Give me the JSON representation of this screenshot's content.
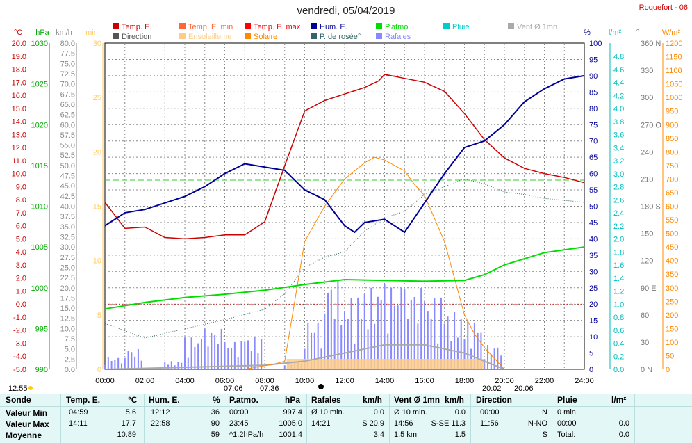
{
  "page": {
    "title": "vendredi, 05/04/2019",
    "station": "Roquefort - 06"
  },
  "legend": [
    {
      "label": "Temp. E.",
      "color": "#cc0000"
    },
    {
      "label": "Temp. E. min",
      "color": "#ff6633"
    },
    {
      "label": "Temp. E. max",
      "color": "#ff0000"
    },
    {
      "label": "Hum. E.",
      "color": "#000099"
    },
    {
      "label": "P.atmo.",
      "color": "#00dd00"
    },
    {
      "label": "Pluie",
      "color": "#00cccc"
    },
    {
      "label": "Vent Ø 1mn",
      "color": "#aaaaaa"
    },
    {
      "label": "Direction",
      "color": "#555555"
    },
    {
      "label": "Ensoleilleme",
      "color": "#ffcc88"
    },
    {
      "label": "Solaire",
      "color": "#ff8800"
    },
    {
      "label": "P. de rosée°",
      "color": "#336666"
    },
    {
      "label": "Rafales",
      "color": "#8888ff"
    }
  ],
  "axes": {
    "temp": {
      "unit": "°C",
      "color": "#cc0000",
      "ticks": [
        "20.0",
        "19.0",
        "18.0",
        "17.0",
        "16.0",
        "15.0",
        "14.0",
        "13.0",
        "12.0",
        "11.0",
        "10.0",
        "9.0",
        "8.0",
        "7.0",
        "6.0",
        "5.0",
        "4.0",
        "3.0",
        "2.0",
        "1.0",
        "0.0",
        "-1.0",
        "-2.0",
        "-3.0",
        "-4.0",
        "-5.0"
      ]
    },
    "press": {
      "unit": "hPa",
      "color": "#00aa00",
      "ticks": [
        "1030",
        "1025",
        "1020",
        "1015",
        "1010",
        "1005",
        "1000",
        "995",
        "990"
      ]
    },
    "wind": {
      "unit": "km/h",
      "color": "#888888",
      "ticks": [
        "80.0",
        "77.5",
        "75.0",
        "72.5",
        "70.0",
        "67.5",
        "65.0",
        "62.5",
        "60.0",
        "57.5",
        "55.0",
        "52.5",
        "50.0",
        "47.5",
        "45.0",
        "42.5",
        "40.0",
        "37.5",
        "35.0",
        "32.5",
        "30.0",
        "27.5",
        "25.0",
        "22.5",
        "20.0",
        "17.5",
        "15.0",
        "12.5",
        "10.0",
        "7.5",
        "5.0",
        "2.5",
        "0.0"
      ]
    },
    "minutes": {
      "unit": "min",
      "color": "#ffcc66",
      "ticks": [
        "30",
        "25",
        "20",
        "15",
        "10",
        "5",
        "0"
      ]
    },
    "hum": {
      "unit": "%",
      "color": "#000099",
      "ticks": [
        "100",
        "95",
        "90",
        "85",
        "80",
        "75",
        "70",
        "65",
        "60",
        "55",
        "50",
        "45",
        "40",
        "35",
        "30",
        "25",
        "20",
        "15",
        "10",
        "5",
        "0"
      ]
    },
    "rain": {
      "unit": "l/m²",
      "color": "#00bbbb",
      "ticks": [
        "4.8",
        "4.6",
        "4.4",
        "4.2",
        "4.0",
        "3.8",
        "3.6",
        "3.4",
        "3.2",
        "3.0",
        "2.8",
        "2.6",
        "2.4",
        "2.2",
        "2.0",
        "1.8",
        "1.6",
        "1.4",
        "1.2",
        "1.0",
        "0.8",
        "0.6",
        "0.4",
        "0.2",
        "0.0"
      ]
    },
    "dir": {
      "unit": "°",
      "color": "#777777",
      "ticks": [
        "360 N",
        "330",
        "300",
        "270 O",
        "240",
        "210",
        "180 S",
        "150",
        "120",
        "90 E",
        "60",
        "30",
        "0 N"
      ]
    },
    "solar": {
      "unit": "W/m²",
      "color": "#ff8800",
      "ticks": [
        "1200",
        "1150",
        "1100",
        "1050",
        "1000",
        "950",
        "900",
        "850",
        "800",
        "750",
        "700",
        "650",
        "600",
        "550",
        "500",
        "450",
        "400",
        "350",
        "300",
        "250",
        "200",
        "150",
        "100",
        "50",
        "0"
      ]
    },
    "time": {
      "ticks": [
        "00:00",
        "02:00",
        "04:00",
        "06:00",
        "08:00",
        "10:00",
        "12:00",
        "14:00",
        "16:00",
        "18:00",
        "20:00",
        "22:00",
        "24:00"
      ]
    }
  },
  "markers": {
    "left_time": "12:55",
    "sunrise": "07:06",
    "sunrise2": "07:36",
    "sunset": "20:02",
    "sunset2": "20:06"
  },
  "chart_data": {
    "type": "line",
    "title": "vendredi, 05/04/2019",
    "x_range": [
      "00:00",
      "24:00"
    ],
    "series": [
      {
        "name": "Temp. E.",
        "unit": "°C",
        "x": [
          0,
          1,
          2,
          3,
          4,
          5,
          6,
          7,
          8,
          9,
          10,
          11,
          12,
          13,
          13.7,
          14,
          15,
          16,
          17,
          18,
          19,
          20,
          21,
          22,
          23,
          24
        ],
        "values": [
          7.8,
          5.8,
          5.9,
          5.1,
          5.0,
          5.1,
          5.3,
          5.3,
          6.3,
          10.6,
          14.8,
          15.6,
          16.1,
          16.6,
          17.1,
          17.6,
          17.3,
          17.0,
          16.3,
          14.6,
          12.6,
          11.2,
          10.4,
          10.0,
          9.7,
          9.3
        ]
      },
      {
        "name": "Hum. E.",
        "unit": "%",
        "x": [
          0,
          1,
          2,
          3,
          4,
          5,
          6,
          7,
          8,
          9,
          10,
          11,
          12,
          12.5,
          13,
          14,
          15,
          16,
          17,
          18,
          19,
          20,
          21,
          22,
          23,
          24
        ],
        "values": [
          44,
          48,
          49,
          51,
          53,
          56,
          60,
          63,
          62,
          61,
          55,
          52,
          44,
          42,
          45,
          46,
          42,
          51,
          60,
          68,
          70,
          75,
          82,
          86,
          89,
          90
        ]
      },
      {
        "name": "P.atmo.",
        "unit": "hPa",
        "x": [
          0,
          2,
          4,
          6,
          8,
          10,
          12,
          14,
          16,
          18,
          19,
          20,
          22,
          24
        ],
        "values": [
          997.4,
          998.2,
          998.8,
          999.2,
          999.7,
          1000.4,
          1001.0,
          1000.9,
          1000.8,
          1000.9,
          1001.6,
          1002.8,
          1004.3,
          1005.0
        ]
      },
      {
        "name": "P. de rosée°",
        "unit": "°C",
        "x": [
          0,
          2,
          4,
          6,
          8,
          9,
          10,
          11,
          12,
          13,
          14,
          15,
          16,
          17,
          18,
          19,
          20,
          21,
          22,
          24
        ],
        "values": [
          -1.5,
          -2.6,
          -1.9,
          -1.2,
          -0.4,
          0.8,
          2.8,
          3.6,
          4.0,
          5.6,
          6.6,
          7.1,
          8.4,
          9.0,
          9.6,
          9.2,
          8.6,
          8.4,
          8.1,
          7.8
        ]
      },
      {
        "name": "Solaire",
        "unit": "W/m²",
        "x": [
          0,
          7,
          8.5,
          9,
          10,
          11,
          12,
          13,
          13.5,
          14,
          15,
          15.5,
          16,
          17,
          18,
          18.5,
          19,
          20,
          24
        ],
        "values": [
          0,
          0,
          20,
          30,
          470,
          600,
          700,
          760,
          780,
          770,
          730,
          680,
          640,
          470,
          200,
          130,
          80,
          0,
          0
        ]
      },
      {
        "name": "Rafales",
        "unit": "km/h",
        "x": [
          0,
          1,
          2,
          3,
          4,
          5,
          6,
          7,
          8,
          9,
          10,
          11,
          12,
          13,
          14,
          15,
          16,
          17,
          18,
          19,
          20,
          21,
          22,
          23,
          24
        ],
        "values": [
          3,
          5,
          0,
          2,
          8,
          10,
          7,
          8,
          0,
          2,
          12,
          22,
          18,
          20,
          21,
          20,
          18,
          14,
          12,
          6,
          0,
          0,
          0,
          0,
          0
        ]
      },
      {
        "name": "Vent Ø 1mn",
        "unit": "km/h",
        "x": [
          0,
          4,
          8,
          10,
          12,
          14,
          16,
          18,
          19,
          20,
          24
        ],
        "values": [
          0,
          0.5,
          1,
          2,
          4,
          6,
          6,
          4,
          2,
          0,
          0
        ]
      },
      {
        "name": "Pluie",
        "unit": "l/m²",
        "x": [
          0,
          24
        ],
        "values": [
          0.0,
          0.0
        ]
      }
    ]
  },
  "stats": {
    "headers": [
      {
        "title": "Sonde"
      },
      {
        "title": "Temp. E.",
        "unit": "°C"
      },
      {
        "title": "Hum. E.",
        "unit": "%"
      },
      {
        "title": "P.atmo.",
        "unit": "hPa"
      },
      {
        "title": "Rafales",
        "unit": "km/h"
      },
      {
        "title": "Vent Ø 1mn",
        "unit": "km/h"
      },
      {
        "title": "Direction"
      },
      {
        "title": "Pluie",
        "unit": "l/m²"
      }
    ],
    "row_labels": [
      "Valeur Min",
      "Valeur Max",
      "Moyenne"
    ],
    "temp": [
      [
        "04:59",
        "5.6"
      ],
      [
        "14:11",
        "17.7"
      ],
      [
        "",
        "10.89"
      ]
    ],
    "hum": [
      [
        "12:12",
        "36"
      ],
      [
        "22:58",
        "90"
      ],
      [
        "",
        "59"
      ]
    ],
    "press": [
      [
        "00:00",
        "997.4"
      ],
      [
        "23:45",
        "1005.0"
      ],
      [
        "^1.2hPa/h",
        "1001.4"
      ]
    ],
    "gust": [
      [
        "Ø 10 min.",
        "0.0"
      ],
      [
        "14:21",
        "S 20.9"
      ],
      [
        "",
        "3.4"
      ]
    ],
    "wind": [
      [
        "Ø 10 min.",
        "0.0"
      ],
      [
        "14:56",
        "S-SE 11.3"
      ],
      [
        "1,5 km",
        "1.5"
      ]
    ],
    "dir": [
      [
        "00:00",
        "N"
      ],
      [
        "11:56",
        "N-NO"
      ],
      [
        "",
        "S"
      ]
    ],
    "rain": [
      [
        "0 min.",
        ""
      ],
      [
        "00:00",
        "0.0"
      ],
      [
        "Total:",
        "0.0"
      ]
    ]
  }
}
